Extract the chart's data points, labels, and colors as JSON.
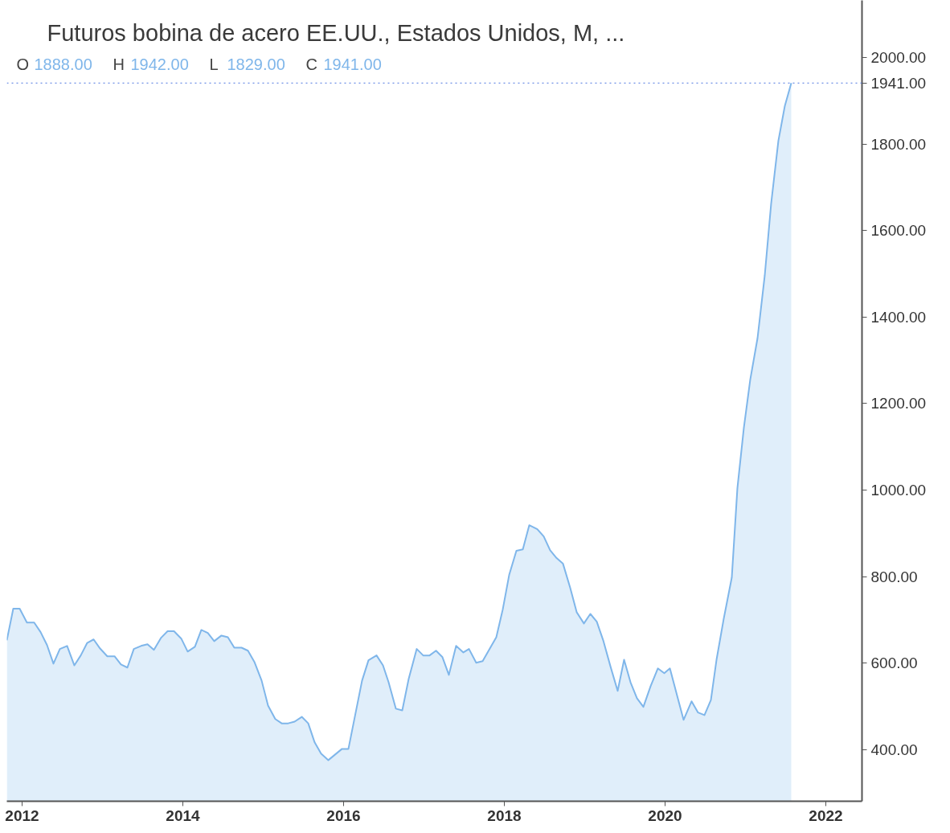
{
  "chart_data": {
    "type": "area",
    "title": "Futuros bobina de acero EE.UU., Estados Unidos, M, ...",
    "annotations": [
      "O 1888.00",
      "H 1942.00",
      "L 1829.00",
      "C 1941.00"
    ],
    "x": [
      2011.81,
      2011.89,
      2011.97,
      2012.06,
      2012.15,
      2012.23,
      2012.31,
      2012.39,
      2012.47,
      2012.56,
      2012.65,
      2012.73,
      2012.81,
      2012.89,
      2012.97,
      2013.06,
      2013.15,
      2013.23,
      2013.31,
      2013.39,
      2013.48,
      2013.56,
      2013.64,
      2013.73,
      2013.81,
      2013.89,
      2013.98,
      2014.06,
      2014.15,
      2014.23,
      2014.31,
      2014.39,
      2014.48,
      2014.56,
      2014.64,
      2014.73,
      2014.81,
      2014.89,
      2014.98,
      2015.06,
      2015.15,
      2015.23,
      2015.31,
      2015.39,
      2015.48,
      2015.56,
      2015.64,
      2015.72,
      2015.81,
      2015.98,
      2016.06,
      2016.23,
      2016.31,
      2016.41,
      2016.49,
      2016.56,
      2016.65,
      2016.73,
      2016.81,
      2016.91,
      2016.99,
      2017.07,
      2017.15,
      2017.23,
      2017.31,
      2017.4,
      2017.49,
      2017.56,
      2017.65,
      2017.73,
      2017.81,
      2017.9,
      2017.98,
      2018.06,
      2018.15,
      2018.23,
      2018.31,
      2018.41,
      2018.49,
      2018.57,
      2018.65,
      2018.73,
      2018.82,
      2018.9,
      2018.99,
      2019.07,
      2019.15,
      2019.23,
      2019.32,
      2019.41,
      2019.49,
      2019.57,
      2019.65,
      2019.73,
      2019.82,
      2019.91,
      2019.99,
      2020.06,
      2020.15,
      2020.23,
      2020.33,
      2020.41,
      2020.49,
      2020.57,
      2020.64,
      2020.73,
      2020.83,
      2020.9,
      2020.98,
      2021.06,
      2021.15,
      2021.24,
      2021.32,
      2021.41,
      2021.49,
      2021.57
    ],
    "series": [
      {
        "color": "#7fb6ea",
        "values": [
          653,
          726,
          726,
          694,
          694,
          672,
          642,
          599,
          633,
          640,
          595,
          618,
          647,
          655,
          634,
          616,
          616,
          597,
          590,
          633,
          640,
          644,
          631,
          659,
          674,
          674,
          657,
          627,
          638,
          677,
          670,
          651,
          664,
          660,
          636,
          636,
          629,
          603,
          560,
          502,
          471,
          461,
          461,
          465,
          476,
          461,
          417,
          391,
          376,
          402,
          402,
          560,
          607,
          618,
          595,
          556,
          495,
          491,
          564,
          633,
          618,
          618,
          629,
          614,
          573,
          640,
          625,
          633,
          601,
          605,
          631,
          660,
          724,
          804,
          860,
          863,
          919,
          910,
          893,
          861,
          843,
          830,
          774,
          718,
          692,
          714,
          696,
          653,
          593,
          536,
          608,
          556,
          519,
          499,
          547,
          588,
          577,
          588,
          525,
          469,
          512,
          486,
          480,
          515,
          608,
          703,
          798,
          1005,
          1144,
          1256,
          1351,
          1496,
          1663,
          1808,
          1888,
          1941
        ]
      }
    ],
    "xlim": [
      2011.81,
      2022.45
    ],
    "ylim": [
      281,
      2132
    ],
    "xticks": [
      2012,
      2014,
      2016,
      2018,
      2020,
      2022
    ],
    "yticks": [
      {
        "value": 400,
        "label": "400.00"
      },
      {
        "value": 600,
        "label": "600.00"
      },
      {
        "value": 800,
        "label": "800.00"
      },
      {
        "value": 1000,
        "label": "1000.00"
      },
      {
        "value": 1200,
        "label": "1200.00"
      },
      {
        "value": 1400,
        "label": "1400.00"
      },
      {
        "value": 1600,
        "label": "1600.00"
      },
      {
        "value": 1800,
        "label": "1800.00"
      },
      {
        "value": 2000,
        "label": "2000.00"
      }
    ],
    "ref_lines": [
      {
        "axis": "y",
        "value": 1941,
        "label": "1941.00",
        "color": "#4a74e0",
        "line_style": "dotted"
      }
    ],
    "grid": false
  }
}
